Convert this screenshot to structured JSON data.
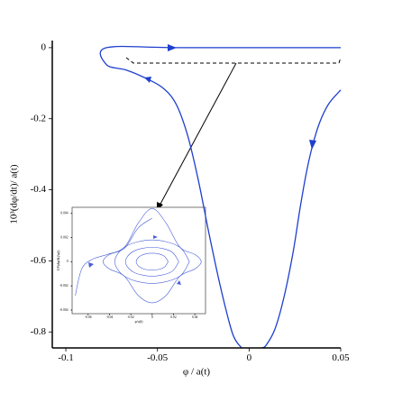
{
  "chart_data": [
    {
      "type": "line",
      "xlabel": "φ / a(t)",
      "ylabel": "10³(dφ/dt)/ a(t)",
      "xlim": [
        -0.1074,
        0.05
      ],
      "ylim": [
        -0.845,
        0.02
      ],
      "xticks": [
        -0.1,
        -0.05,
        0,
        0.05
      ],
      "yticks": [
        0,
        -0.2,
        -0.4,
        -0.6,
        -0.8
      ],
      "series": [
        {
          "color": "#1f3fcf",
          "x": [
            0.05,
            0.0436,
            0.0387,
            0.0348,
            0.0314,
            0.0279,
            0.024,
            0.019,
            0.0141,
            0.0092,
            0.0067
          ],
          "values": [
            -0.119,
            -0.157,
            -0.208,
            -0.272,
            -0.348,
            -0.449,
            -0.576,
            -0.703,
            -0.792,
            -0.838,
            -0.845
          ]
        },
        {
          "color": "#1f3fcf",
          "x": [
            -0.0041,
            -0.009,
            -0.0154,
            -0.0218,
            -0.0277,
            -0.0336,
            -0.04,
            -0.0474,
            -0.0572,
            -0.067,
            -0.0778,
            -0.0778,
            -0.0375,
            0.05
          ],
          "values": [
            -0.845,
            -0.805,
            -0.678,
            -0.525,
            -0.373,
            -0.246,
            -0.157,
            -0.112,
            -0.084,
            -0.063,
            -0.048,
            0,
            0,
            0
          ]
        }
      ]
    },
    {
      "type": "line",
      "xlabel": "φ/a(t)",
      "ylabel": "10³(dφ/dt)/a(t)",
      "xlim": [
        -0.075,
        0.05
      ],
      "ylim": [
        -0.0043,
        0.0045
      ],
      "xticks": [
        -0.06,
        -0.04,
        -0.02,
        0,
        0.02,
        0.04
      ],
      "yticks": [
        0.004,
        0.002,
        0,
        -0.002,
        -0.004
      ],
      "series": [
        {
          "color": "#4a5fd8",
          "x": [
            -0.072,
            -0.066,
            -0.056,
            -0.042,
            -0.026,
            -0.013,
            0,
            0.013,
            0.026,
            0.04,
            0.046,
            0.04,
            0.026,
            0.013,
            0,
            -0.013,
            -0.026,
            -0.04,
            -0.046,
            -0.04,
            -0.026,
            -0.013,
            0
          ],
          "values": [
            -0.0028,
            -0.0006,
            0.0002,
            0.0006,
            0.0012,
            0.0032,
            0.0044,
            0.0032,
            0.0012,
            0.0006,
            0,
            -0.0006,
            -0.0012,
            -0.0028,
            -0.0034,
            -0.0028,
            -0.0012,
            -0.0006,
            0,
            0.0006,
            0.0011,
            0.0028,
            0.0036
          ]
        },
        {
          "color": "#4a5fd8",
          "x": [
            0.035,
            0.0247,
            0,
            -0.0247,
            -0.035,
            -0.0247,
            0,
            0.0247,
            0.035
          ],
          "values": [
            0,
            0.00127,
            0.0018,
            0.00127,
            0,
            -0.00127,
            -0.0018,
            -0.00127,
            0
          ]
        },
        {
          "color": "#4a5fd8",
          "x": [
            0.025,
            0.0177,
            0,
            -0.0177,
            -0.025,
            -0.0177,
            0,
            0.0177,
            0.025
          ],
          "values": [
            0,
            0.00085,
            0.0012,
            0.00085,
            0,
            -0.00085,
            -0.0012,
            -0.00085,
            0
          ]
        },
        {
          "color": "#4a5fd8",
          "x": [
            0.015,
            0.0106,
            0,
            -0.0106,
            -0.015,
            -0.0106,
            0,
            0.0106,
            0.015
          ],
          "values": [
            0,
            0.0005,
            0.0007,
            0.0005,
            0,
            -0.0005,
            -0.0007,
            -0.0005,
            0
          ]
        }
      ]
    }
  ]
}
